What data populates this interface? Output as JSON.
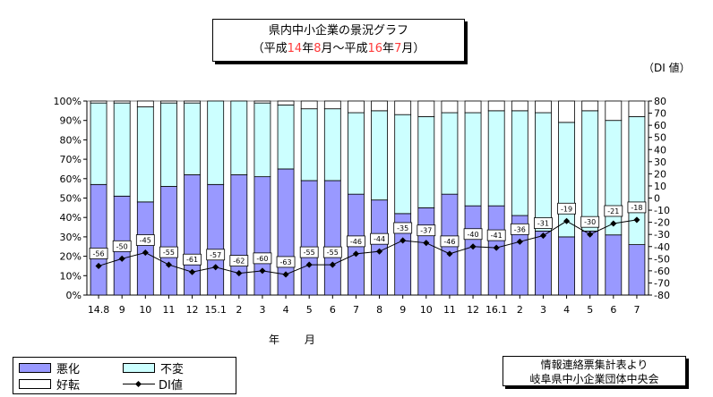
{
  "title": {
    "line1": "県内中小企業の景況グラフ",
    "line2": {
      "p1": "（平成",
      "y1": "14",
      "p2": "年",
      "m1": "8",
      "p3": "月～平成",
      "y2": "16",
      "p4": "年",
      "m2": "7",
      "p5": "月）"
    }
  },
  "right_axis_unit": "（DI 値）",
  "x_axis_title": "年 月",
  "legend": {
    "worse": "悪化",
    "unchanged": "不変",
    "better": "好転",
    "di": "DI値"
  },
  "source": {
    "line1": "情報連絡票集計表より",
    "line2": "岐阜県中小企業団体中央会"
  },
  "colors": {
    "worse": "#9999ff",
    "unchanged": "#ccffff",
    "better": "#ffffff",
    "di": "#000000"
  },
  "chart_data": {
    "type": "bar",
    "stacked": true,
    "categories": [
      "14.8",
      "9",
      "10",
      "11",
      "12",
      "15.1",
      "2",
      "3",
      "4",
      "5",
      "6",
      "7",
      "8",
      "9",
      "10",
      "11",
      "12",
      "16.1",
      "2",
      "3",
      "4",
      "5",
      "6",
      "7"
    ],
    "series": [
      {
        "name": "悪化",
        "axis": "left",
        "values": [
          57,
          51,
          48,
          56,
          62,
          57,
          62,
          61,
          65,
          59,
          59,
          52,
          49,
          42,
          45,
          52,
          46,
          46,
          41,
          33,
          30,
          33,
          31,
          26
        ]
      },
      {
        "name": "不変",
        "axis": "left",
        "values": [
          42,
          48,
          49,
          43,
          37,
          43,
          38,
          38,
          33,
          37,
          37,
          42,
          46,
          51,
          47,
          42,
          48,
          49,
          54,
          61,
          59,
          62,
          59,
          66
        ]
      },
      {
        "name": "好転",
        "axis": "left",
        "values": [
          1,
          1,
          3,
          1,
          1,
          0,
          0,
          1,
          2,
          4,
          4,
          6,
          5,
          7,
          8,
          6,
          6,
          5,
          5,
          6,
          11,
          5,
          10,
          8
        ]
      },
      {
        "name": "DI値",
        "axis": "right",
        "type": "line",
        "values": [
          -56,
          -50,
          -45,
          -55,
          -61,
          -57,
          -62,
          -60,
          -63,
          -55,
          -55,
          -46,
          -44,
          -35,
          -37,
          -46,
          -40,
          -41,
          -36,
          -31,
          -19,
          -30,
          -21,
          -18
        ]
      }
    ],
    "left_axis": {
      "ticks": [
        "0%",
        "10%",
        "20%",
        "30%",
        "40%",
        "50%",
        "60%",
        "70%",
        "80%",
        "90%",
        "100%"
      ],
      "range": [
        0,
        100
      ]
    },
    "right_axis": {
      "ticks": [
        "80",
        "70",
        "60",
        "50",
        "40",
        "30",
        "20",
        "10",
        "0",
        "-10",
        "-20",
        "-30",
        "-40",
        "-50",
        "-60",
        "-70",
        "-80"
      ],
      "range": [
        -80,
        80
      ]
    },
    "grid": false,
    "legend_position": "bottom-left"
  }
}
